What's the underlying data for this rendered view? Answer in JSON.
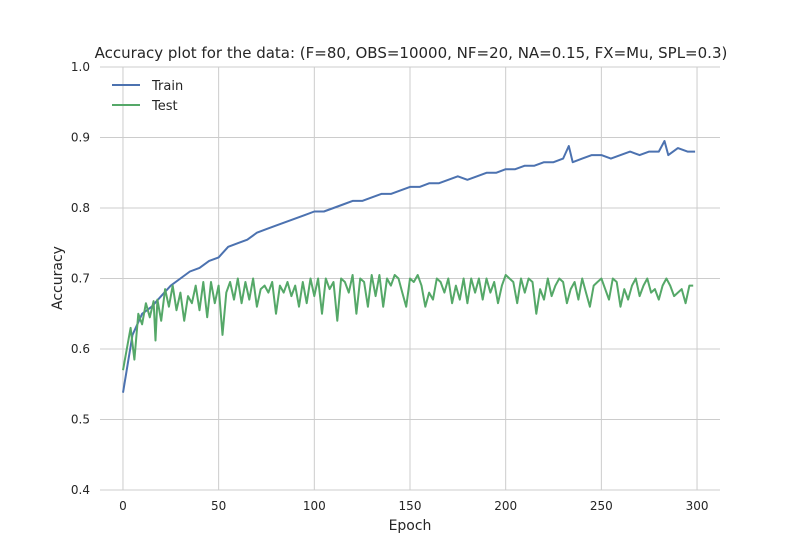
{
  "chart_data": {
    "type": "line",
    "title": "Accuracy plot for the data: (F=80, OBS=10000, NF=20, NA=0.15, FX=Mu, SPL=0.3)",
    "xlabel": "Epoch",
    "ylabel": "Accuracy",
    "xlim": [
      -12,
      312
    ],
    "ylim": [
      0.4,
      1.0
    ],
    "xticks": [
      0,
      50,
      100,
      150,
      200,
      250,
      300
    ],
    "xtick_labels": [
      "0",
      "50",
      "100",
      "150",
      "200",
      "250",
      "300"
    ],
    "yticks": [
      0.4,
      0.5,
      0.6,
      0.7,
      0.8,
      0.9,
      1.0
    ],
    "ytick_labels": [
      "0.4",
      "0.5",
      "0.6",
      "0.7",
      "0.8",
      "0.9",
      "1.0"
    ],
    "grid": true,
    "legend_position": "upper-left",
    "series": [
      {
        "name": "Train",
        "color": "#4c72b0",
        "x": [
          0,
          5,
          10,
          15,
          20,
          25,
          30,
          35,
          40,
          45,
          50,
          55,
          60,
          65,
          70,
          75,
          80,
          85,
          90,
          95,
          100,
          105,
          110,
          115,
          120,
          125,
          130,
          135,
          140,
          145,
          150,
          155,
          160,
          165,
          170,
          175,
          180,
          185,
          190,
          195,
          200,
          205,
          210,
          215,
          220,
          225,
          230,
          233,
          235,
          240,
          245,
          250,
          255,
          260,
          265,
          270,
          275,
          280,
          283,
          285,
          290,
          295,
          299
        ],
        "values": [
          0.538,
          0.62,
          0.65,
          0.66,
          0.675,
          0.69,
          0.7,
          0.71,
          0.715,
          0.725,
          0.73,
          0.745,
          0.75,
          0.755,
          0.765,
          0.77,
          0.775,
          0.78,
          0.785,
          0.79,
          0.795,
          0.795,
          0.8,
          0.805,
          0.81,
          0.81,
          0.815,
          0.82,
          0.82,
          0.825,
          0.83,
          0.83,
          0.835,
          0.835,
          0.84,
          0.845,
          0.84,
          0.845,
          0.85,
          0.85,
          0.855,
          0.855,
          0.86,
          0.86,
          0.865,
          0.865,
          0.87,
          0.888,
          0.865,
          0.87,
          0.875,
          0.875,
          0.87,
          0.875,
          0.88,
          0.875,
          0.88,
          0.88,
          0.895,
          0.875,
          0.885,
          0.88,
          0.88
        ]
      },
      {
        "name": "Test",
        "color": "#55a868",
        "x": [
          0,
          2,
          4,
          6,
          8,
          10,
          12,
          14,
          16,
          17,
          18,
          20,
          22,
          24,
          26,
          28,
          30,
          32,
          34,
          36,
          38,
          40,
          42,
          44,
          46,
          48,
          50,
          52,
          54,
          56,
          58,
          60,
          62,
          64,
          66,
          68,
          70,
          72,
          74,
          76,
          78,
          80,
          82,
          84,
          86,
          88,
          90,
          92,
          94,
          96,
          98,
          100,
          102,
          104,
          106,
          108,
          110,
          112,
          114,
          116,
          118,
          120,
          122,
          124,
          126,
          128,
          130,
          132,
          134,
          136,
          138,
          140,
          142,
          144,
          146,
          148,
          150,
          152,
          154,
          156,
          158,
          160,
          162,
          164,
          166,
          168,
          170,
          172,
          174,
          176,
          178,
          180,
          182,
          184,
          186,
          188,
          190,
          192,
          194,
          196,
          198,
          200,
          202,
          204,
          206,
          208,
          210,
          212,
          214,
          216,
          218,
          220,
          222,
          224,
          226,
          228,
          230,
          232,
          234,
          236,
          238,
          240,
          242,
          244,
          246,
          248,
          250,
          252,
          254,
          256,
          258,
          260,
          262,
          264,
          266,
          268,
          270,
          272,
          274,
          276,
          278,
          280,
          282,
          284,
          286,
          288,
          290,
          292,
          294,
          296,
          298
        ],
        "values": [
          0.57,
          0.6,
          0.63,
          0.585,
          0.65,
          0.635,
          0.665,
          0.645,
          0.668,
          0.612,
          0.67,
          0.64,
          0.685,
          0.66,
          0.69,
          0.655,
          0.68,
          0.64,
          0.675,
          0.665,
          0.69,
          0.655,
          0.695,
          0.645,
          0.695,
          0.665,
          0.69,
          0.62,
          0.68,
          0.695,
          0.67,
          0.7,
          0.665,
          0.695,
          0.67,
          0.7,
          0.66,
          0.685,
          0.69,
          0.68,
          0.695,
          0.65,
          0.69,
          0.68,
          0.695,
          0.675,
          0.69,
          0.66,
          0.695,
          0.665,
          0.7,
          0.675,
          0.7,
          0.65,
          0.7,
          0.685,
          0.695,
          0.64,
          0.7,
          0.695,
          0.68,
          0.705,
          0.65,
          0.7,
          0.695,
          0.66,
          0.705,
          0.675,
          0.705,
          0.66,
          0.7,
          0.69,
          0.705,
          0.7,
          0.68,
          0.66,
          0.7,
          0.695,
          0.705,
          0.69,
          0.66,
          0.68,
          0.67,
          0.7,
          0.695,
          0.68,
          0.7,
          0.665,
          0.69,
          0.67,
          0.7,
          0.665,
          0.7,
          0.68,
          0.7,
          0.67,
          0.7,
          0.68,
          0.695,
          0.665,
          0.69,
          0.705,
          0.7,
          0.695,
          0.665,
          0.7,
          0.68,
          0.7,
          0.695,
          0.65,
          0.685,
          0.67,
          0.7,
          0.675,
          0.69,
          0.7,
          0.695,
          0.665,
          0.685,
          0.695,
          0.67,
          0.7,
          0.68,
          0.66,
          0.69,
          0.695,
          0.7,
          0.685,
          0.67,
          0.7,
          0.695,
          0.66,
          0.685,
          0.67,
          0.69,
          0.7,
          0.675,
          0.69,
          0.7,
          0.68,
          0.685,
          0.67,
          0.69,
          0.7,
          0.69,
          0.675,
          0.68,
          0.685,
          0.665,
          0.69,
          0.69
        ]
      }
    ]
  }
}
